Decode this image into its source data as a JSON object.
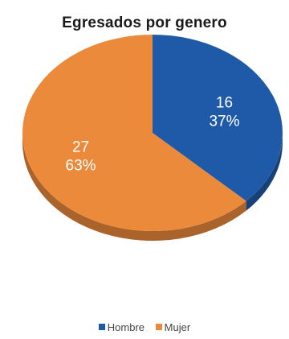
{
  "chart_data": {
    "type": "pie",
    "title": "Egresados por genero",
    "slices": [
      {
        "label": "Hombre",
        "value": 16,
        "percent": "37%",
        "color": "#1f5aa8"
      },
      {
        "label": "Mujer",
        "value": 27,
        "percent": "63%",
        "color": "#ec8a3b"
      }
    ],
    "legend_position": "bottom"
  }
}
